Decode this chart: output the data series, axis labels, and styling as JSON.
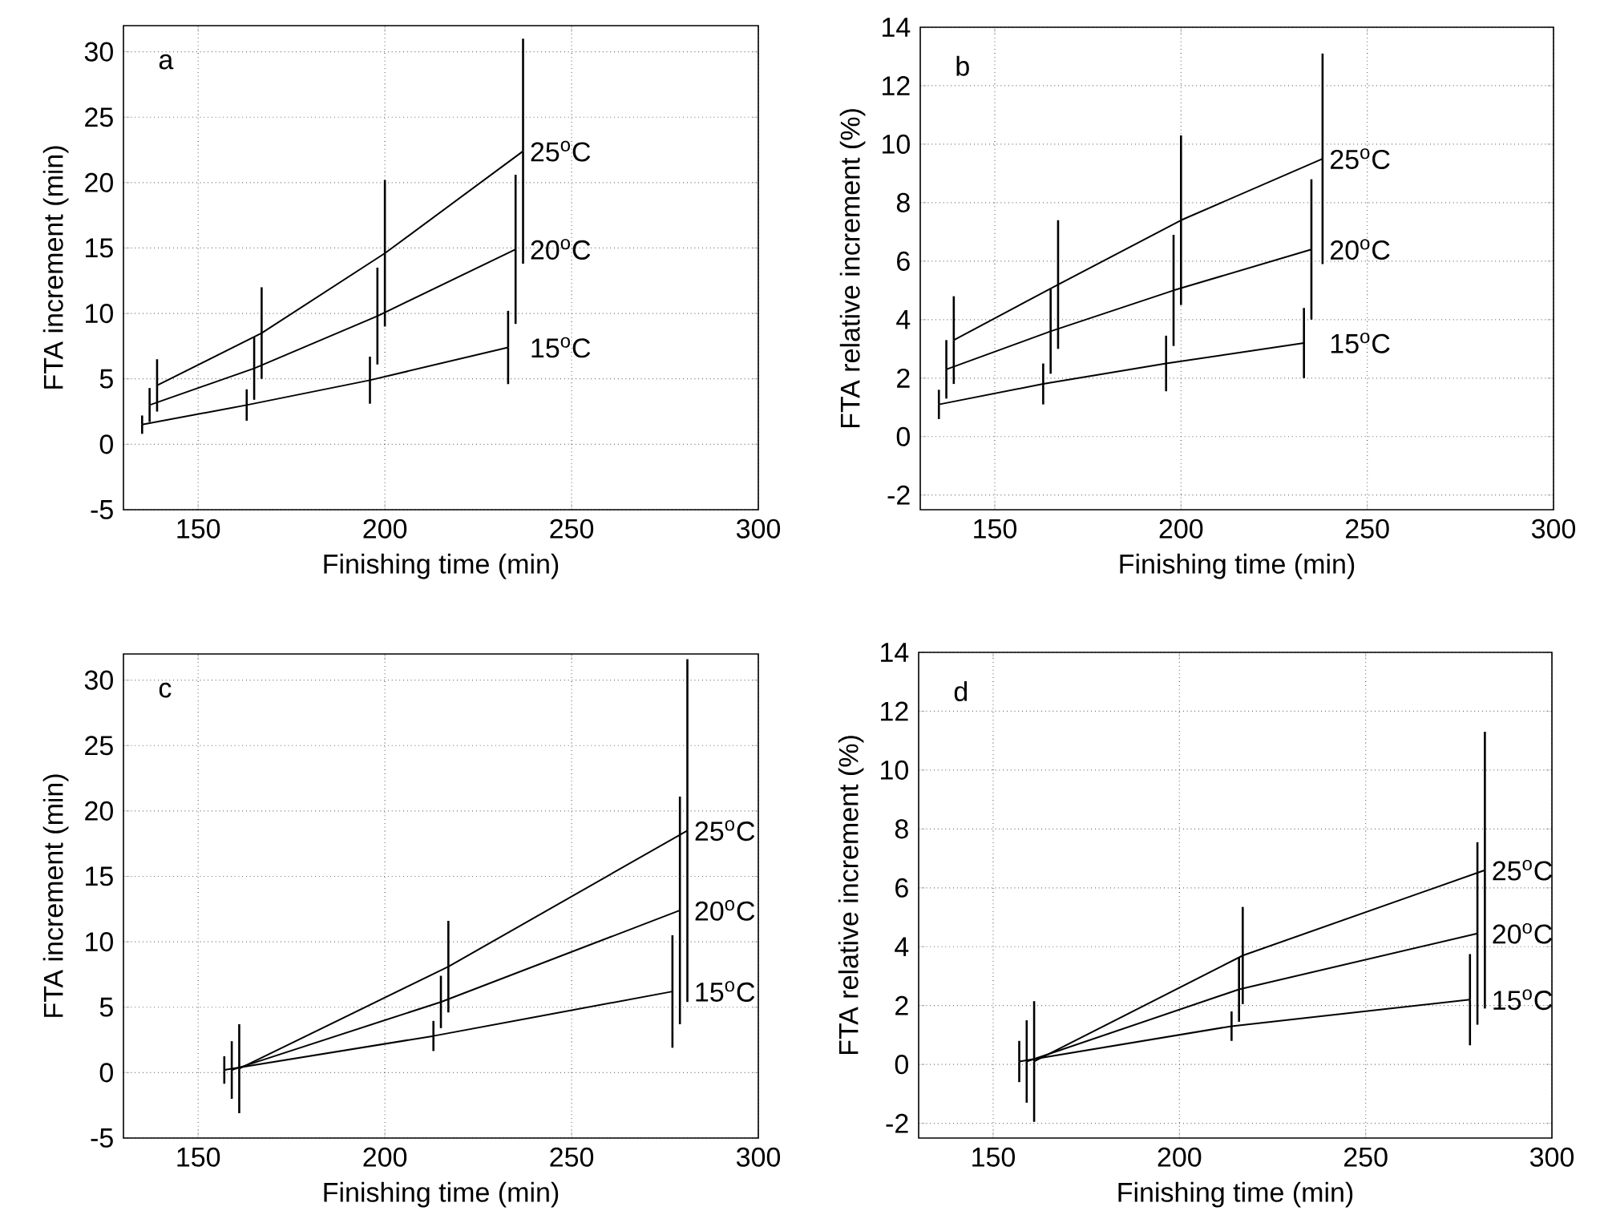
{
  "chart_data": [
    {
      "type": "line",
      "annotations": [
        "a"
      ],
      "xlabel": "Finishing time (min)",
      "ylabel": "FTA increment (min)",
      "xlim": [
        130,
        300
      ],
      "ylim": [
        -5,
        32
      ],
      "xticks": [
        150,
        200,
        250,
        300
      ],
      "yticks": [
        -5,
        0,
        5,
        10,
        15,
        20,
        25,
        30
      ],
      "grid": true,
      "line_style": "solid",
      "series": [
        {
          "name": "15$^{o}$C",
          "color": "#000000",
          "x": [
            135,
            163,
            196,
            233
          ],
          "values": [
            1.5,
            3.0,
            4.9,
            7.4
          ],
          "errors": [
            0.7,
            1.2,
            1.8,
            2.8
          ]
        },
        {
          "name": "20$^{o}$C",
          "color": "#000000",
          "x": [
            137,
            165,
            198,
            235
          ],
          "values": [
            3.0,
            5.8,
            9.8,
            14.9
          ],
          "errors": [
            1.3,
            2.4,
            3.7,
            5.7
          ]
        },
        {
          "name": "25$^{o}$C",
          "color": "#000000",
          "x": [
            139,
            167,
            200,
            237
          ],
          "values": [
            4.5,
            8.5,
            14.6,
            22.4
          ],
          "errors": [
            2.0,
            3.5,
            5.6,
            8.6
          ]
        }
      ]
    },
    {
      "type": "line",
      "annotations": [
        "b"
      ],
      "xlabel": "Finishing time (min)",
      "ylabel": "FTA relative increment (%)",
      "xlim": [
        130,
        300
      ],
      "ylim": [
        -2.5,
        14
      ],
      "xticks": [
        150,
        200,
        250,
        300
      ],
      "yticks": [
        -2,
        0,
        2,
        4,
        6,
        8,
        10,
        12,
        14
      ],
      "grid": true,
      "line_style": "solid",
      "series": [
        {
          "name": "15$^{o}$C",
          "color": "#000000",
          "x": [
            135,
            163,
            196,
            233
          ],
          "values": [
            1.1,
            1.8,
            2.5,
            3.2
          ],
          "errors": [
            0.5,
            0.7,
            0.95,
            1.2
          ]
        },
        {
          "name": "20$^{o}$C",
          "color": "#000000",
          "x": [
            137,
            165,
            198,
            235
          ],
          "values": [
            2.3,
            3.6,
            5.0,
            6.4
          ],
          "errors": [
            1.0,
            1.45,
            1.9,
            2.4
          ]
        },
        {
          "name": "25$^{o}$C",
          "color": "#000000",
          "x": [
            139,
            167,
            200,
            238
          ],
          "values": [
            3.3,
            5.2,
            7.4,
            9.5
          ],
          "errors": [
            1.5,
            2.2,
            2.9,
            3.6
          ]
        }
      ]
    },
    {
      "type": "line",
      "annotations": [
        "c"
      ],
      "xlabel": "Finishing time (min)",
      "ylabel": "FTA increment (min)",
      "xlim": [
        130,
        300
      ],
      "ylim": [
        -5,
        32
      ],
      "xticks": [
        150,
        200,
        250,
        300
      ],
      "yticks": [
        -5,
        0,
        5,
        10,
        15,
        20,
        25,
        30
      ],
      "grid": true,
      "line_style": "solid",
      "series": [
        {
          "name": "15$^{o}$C",
          "color": "#000000",
          "x": [
            157,
            213,
            277
          ],
          "values": [
            0.2,
            2.8,
            6.2
          ],
          "errors": [
            1.05,
            1.15,
            4.3
          ]
        },
        {
          "name": "20$^{o}$C",
          "color": "#000000",
          "x": [
            159,
            215,
            279
          ],
          "values": [
            0.2,
            5.4,
            12.4
          ],
          "errors": [
            2.2,
            2.0,
            8.7
          ]
        },
        {
          "name": "25$^{o}$C",
          "color": "#000000",
          "x": [
            161,
            217,
            281
          ],
          "values": [
            0.3,
            8.1,
            18.5
          ],
          "errors": [
            3.4,
            3.5,
            13.1
          ]
        }
      ]
    },
    {
      "type": "line",
      "annotations": [
        "d"
      ],
      "xlabel": "Finishing time (min)",
      "ylabel": "FTA relative increment (%)",
      "xlim": [
        130,
        300
      ],
      "ylim": [
        -2.5,
        14
      ],
      "xticks": [
        150,
        200,
        250,
        300
      ],
      "yticks": [
        -2,
        0,
        2,
        4,
        6,
        8,
        10,
        12,
        14
      ],
      "grid": true,
      "line_style": "solid",
      "series": [
        {
          "name": "15$^{o}$C",
          "color": "#000000",
          "x": [
            157,
            214,
            278
          ],
          "values": [
            0.1,
            1.3,
            2.2
          ],
          "errors": [
            0.7,
            0.5,
            1.55
          ]
        },
        {
          "name": "20$^{o}$C",
          "color": "#000000",
          "x": [
            159,
            216,
            280
          ],
          "values": [
            0.1,
            2.55,
            4.45
          ],
          "errors": [
            1.4,
            1.1,
            3.1
          ]
        },
        {
          "name": "25$^{o}$C",
          "color": "#000000",
          "x": [
            161,
            217,
            282
          ],
          "values": [
            0.1,
            3.7,
            6.6
          ],
          "errors": [
            2.05,
            1.65,
            4.7
          ]
        }
      ]
    }
  ]
}
